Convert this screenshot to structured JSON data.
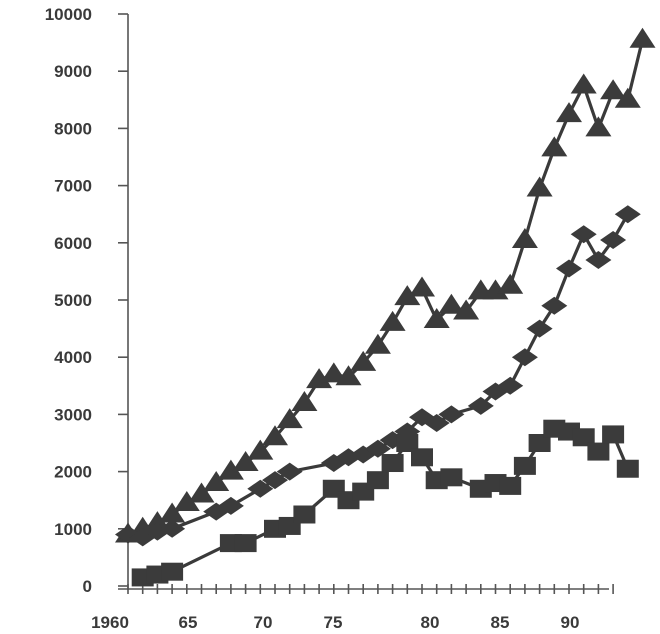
{
  "chart_data": {
    "type": "line",
    "title": "",
    "xlabel": "",
    "ylabel": "",
    "xlim": [
      1960,
      1995
    ],
    "ylim": [
      0,
      10000
    ],
    "grid": false,
    "y_ticks": [
      "0",
      "1000",
      "2000",
      "3000",
      "4000",
      "5000",
      "6000",
      "7000",
      "8000",
      "9000",
      "10000"
    ],
    "x_ticks": [
      "1960",
      "65",
      "70",
      "75",
      "80",
      "85",
      "90"
    ],
    "color": "#3b3b3b",
    "series": [
      {
        "marker": "triangle",
        "points": [
          [
            1960,
            900
          ],
          [
            1961,
            1000
          ],
          [
            1962,
            1100
          ],
          [
            1963,
            1250
          ],
          [
            1964,
            1450
          ],
          [
            1965,
            1600
          ],
          [
            1966,
            1800
          ],
          [
            1967,
            2000
          ],
          [
            1968,
            2150
          ],
          [
            1969,
            2350
          ],
          [
            1970,
            2600
          ],
          [
            1971,
            2900
          ],
          [
            1972,
            3200
          ],
          [
            1973,
            3600
          ],
          [
            1974,
            3700
          ],
          [
            1975,
            3650
          ],
          [
            1976,
            3900
          ],
          [
            1977,
            4200
          ],
          [
            1978,
            4600
          ],
          [
            1979,
            5050
          ],
          [
            1980,
            5200
          ],
          [
            1981,
            4650
          ],
          [
            1982,
            4900
          ],
          [
            1983,
            4800
          ],
          [
            1984,
            5150
          ],
          [
            1985,
            5150
          ],
          [
            1986,
            5250
          ],
          [
            1987,
            6050
          ],
          [
            1988,
            6950
          ],
          [
            1989,
            7650
          ],
          [
            1990,
            8250
          ],
          [
            1991,
            8750
          ],
          [
            1992,
            8000
          ],
          [
            1993,
            8650
          ],
          [
            1994,
            8500
          ],
          [
            1995,
            9550
          ]
        ]
      },
      {
        "marker": "diamond",
        "points": [
          [
            1960,
            900
          ],
          [
            1961,
            850
          ],
          [
            1962,
            950
          ],
          [
            1963,
            1000
          ],
          [
            1966,
            1300
          ],
          [
            1967,
            1400
          ],
          [
            1969,
            1700
          ],
          [
            1970,
            1850
          ],
          [
            1971,
            2000
          ],
          [
            1974,
            2150
          ],
          [
            1975,
            2250
          ],
          [
            1976,
            2300
          ],
          [
            1977,
            2400
          ],
          [
            1978,
            2550
          ],
          [
            1979,
            2700
          ],
          [
            1980,
            2950
          ],
          [
            1981,
            2850
          ],
          [
            1982,
            3000
          ],
          [
            1984,
            3150
          ],
          [
            1985,
            3400
          ],
          [
            1986,
            3500
          ],
          [
            1987,
            4000
          ],
          [
            1988,
            4500
          ],
          [
            1989,
            4900
          ],
          [
            1990,
            5550
          ],
          [
            1991,
            6150
          ],
          [
            1992,
            5700
          ],
          [
            1993,
            6050
          ],
          [
            1994,
            6500
          ]
        ]
      },
      {
        "marker": "square",
        "points": [
          [
            1961,
            150
          ],
          [
            1962,
            200
          ],
          [
            1963,
            250
          ],
          [
            1967,
            750
          ],
          [
            1968,
            750
          ],
          [
            1970,
            1000
          ],
          [
            1971,
            1050
          ],
          [
            1972,
            1250
          ],
          [
            1974,
            1700
          ],
          [
            1975,
            1500
          ],
          [
            1976,
            1650
          ],
          [
            1977,
            1850
          ],
          [
            1978,
            2150
          ],
          [
            1979,
            2500
          ],
          [
            1980,
            2250
          ],
          [
            1981,
            1850
          ],
          [
            1982,
            1900
          ],
          [
            1984,
            1700
          ],
          [
            1985,
            1800
          ],
          [
            1986,
            1750
          ],
          [
            1987,
            2100
          ],
          [
            1988,
            2500
          ],
          [
            1989,
            2750
          ],
          [
            1990,
            2700
          ],
          [
            1991,
            2600
          ],
          [
            1992,
            2350
          ],
          [
            1993,
            2650
          ],
          [
            1994,
            2050
          ]
        ]
      }
    ]
  }
}
